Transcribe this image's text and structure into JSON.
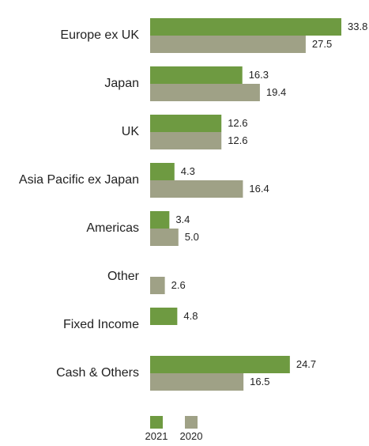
{
  "chart_data": {
    "type": "bar",
    "orientation": "horizontal",
    "categories": [
      "Europe ex UK",
      "Japan",
      "UK",
      "Asia Pacific ex Japan",
      "Americas",
      "Other",
      "Fixed Income",
      "Cash & Others"
    ],
    "series": [
      {
        "name": "2021",
        "color": "#6e9a41",
        "values": [
          33.8,
          16.3,
          12.6,
          4.3,
          3.4,
          null,
          4.8,
          24.7
        ]
      },
      {
        "name": "2020",
        "color": "#9fa186",
        "values": [
          27.5,
          19.4,
          12.6,
          16.4,
          5.0,
          2.6,
          null,
          16.5
        ]
      }
    ],
    "value_labels": [
      [
        "33.8",
        "16.3",
        "12.6",
        "4.3",
        "3.4",
        null,
        "4.8",
        "24.7"
      ],
      [
        "27.5",
        "19.4",
        "12.6",
        "16.4",
        "5.0",
        "2.6",
        null,
        "16.5"
      ]
    ],
    "xlim": [
      0,
      33.8
    ],
    "grid": false,
    "legend": "bottom-center",
    "title": "",
    "xlabel": "",
    "ylabel": ""
  }
}
